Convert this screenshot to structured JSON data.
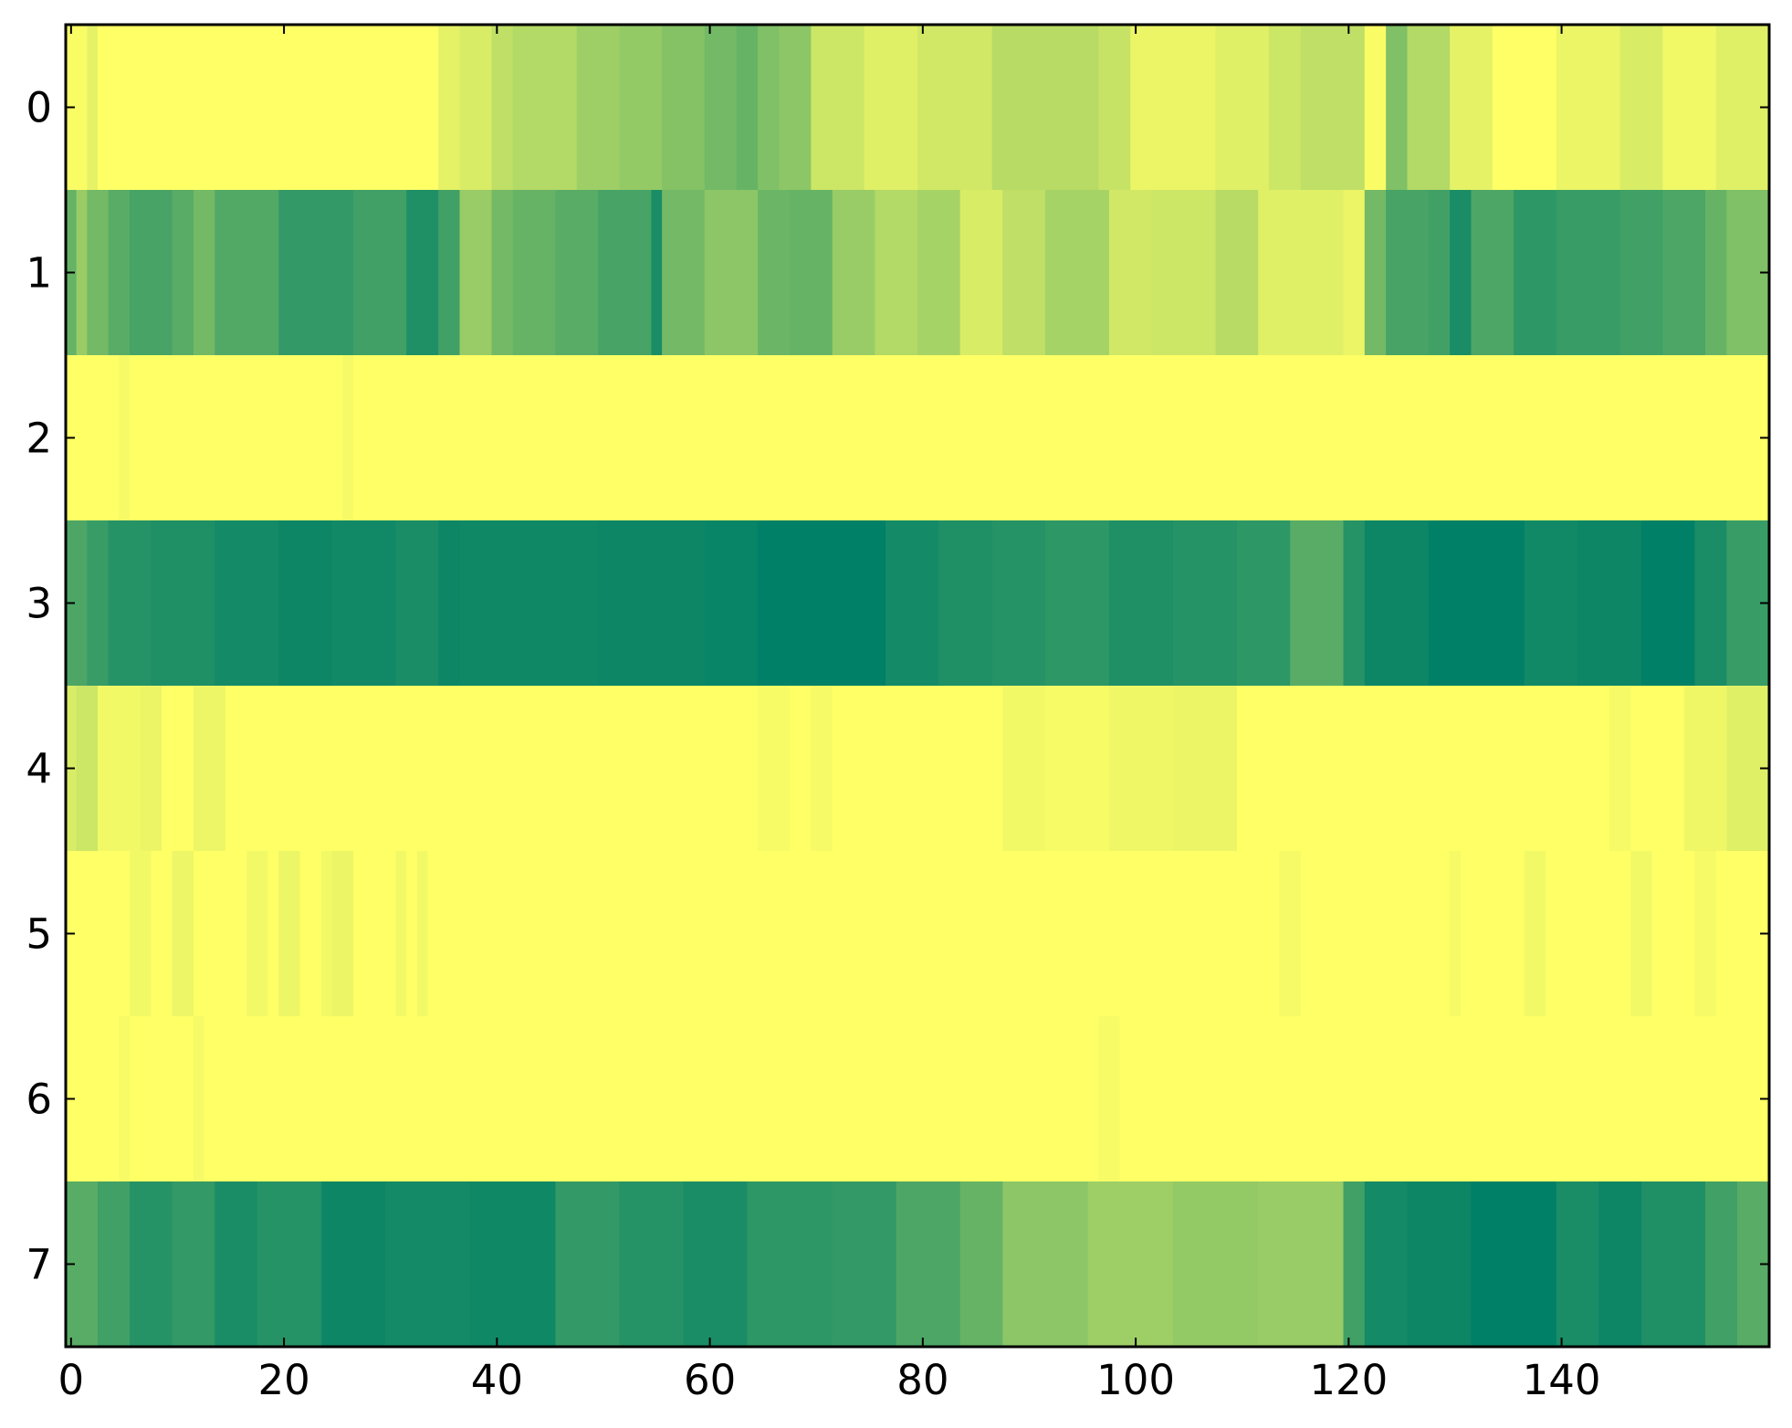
{
  "chart_data": {
    "type": "heatmap",
    "colormap": "summer",
    "color_low": "#008066",
    "color_high": "#ffff66",
    "value_range": [
      0,
      1
    ],
    "x_ticks": [
      0,
      20,
      40,
      60,
      80,
      100,
      120,
      140
    ],
    "x_tick_labels": [
      "0",
      "20",
      "40",
      "60",
      "80",
      "100",
      "120",
      "140"
    ],
    "y_ticks": [
      0,
      1,
      2,
      3,
      4,
      5,
      6,
      7
    ],
    "y_tick_labels": [
      "0",
      "1",
      "2",
      "3",
      "4",
      "5",
      "6",
      "7"
    ],
    "xlim": [
      -0.5,
      159.5
    ],
    "ylim": [
      -0.5,
      7.5
    ],
    "n_columns": 160,
    "rows": [
      {
        "row": 0,
        "segments": [
          [
            0,
            2,
            0.98
          ],
          [
            2,
            3,
            0.9
          ],
          [
            3,
            35,
            1.0
          ],
          [
            35,
            37,
            0.9
          ],
          [
            37,
            40,
            0.85
          ],
          [
            40,
            42,
            0.75
          ],
          [
            42,
            48,
            0.7
          ],
          [
            48,
            52,
            0.62
          ],
          [
            52,
            56,
            0.58
          ],
          [
            56,
            60,
            0.52
          ],
          [
            60,
            63,
            0.45
          ],
          [
            63,
            65,
            0.4
          ],
          [
            65,
            67,
            0.5
          ],
          [
            67,
            70,
            0.55
          ],
          [
            70,
            75,
            0.8
          ],
          [
            75,
            80,
            0.88
          ],
          [
            80,
            87,
            0.82
          ],
          [
            87,
            97,
            0.72
          ],
          [
            97,
            100,
            0.78
          ],
          [
            100,
            108,
            0.92
          ],
          [
            108,
            113,
            0.88
          ],
          [
            113,
            116,
            0.8
          ],
          [
            116,
            122,
            0.75
          ],
          [
            122,
            124,
            0.98
          ],
          [
            124,
            126,
            0.5
          ],
          [
            126,
            130,
            0.7
          ],
          [
            130,
            134,
            0.9
          ],
          [
            134,
            140,
            1.0
          ],
          [
            140,
            146,
            0.92
          ],
          [
            146,
            150,
            0.85
          ],
          [
            150,
            155,
            0.95
          ],
          [
            155,
            160,
            0.88
          ]
        ]
      },
      {
        "row": 1,
        "segments": [
          [
            0,
            1,
            0.4
          ],
          [
            1,
            2,
            0.6
          ],
          [
            2,
            4,
            0.45
          ],
          [
            4,
            6,
            0.35
          ],
          [
            6,
            10,
            0.28
          ],
          [
            10,
            12,
            0.35
          ],
          [
            12,
            14,
            0.45
          ],
          [
            14,
            20,
            0.32
          ],
          [
            20,
            27,
            0.2
          ],
          [
            27,
            32,
            0.25
          ],
          [
            32,
            35,
            0.12
          ],
          [
            35,
            37,
            0.25
          ],
          [
            37,
            40,
            0.6
          ],
          [
            40,
            42,
            0.45
          ],
          [
            42,
            46,
            0.4
          ],
          [
            46,
            50,
            0.35
          ],
          [
            50,
            55,
            0.28
          ],
          [
            55,
            56,
            0.1
          ],
          [
            56,
            60,
            0.45
          ],
          [
            60,
            65,
            0.55
          ],
          [
            65,
            68,
            0.42
          ],
          [
            68,
            72,
            0.4
          ],
          [
            72,
            76,
            0.6
          ],
          [
            76,
            80,
            0.7
          ],
          [
            80,
            84,
            0.65
          ],
          [
            84,
            88,
            0.85
          ],
          [
            88,
            92,
            0.75
          ],
          [
            92,
            98,
            0.65
          ],
          [
            98,
            102,
            0.82
          ],
          [
            102,
            108,
            0.8
          ],
          [
            108,
            112,
            0.72
          ],
          [
            112,
            120,
            0.88
          ],
          [
            120,
            122,
            0.92
          ],
          [
            122,
            124,
            0.45
          ],
          [
            124,
            128,
            0.28
          ],
          [
            128,
            130,
            0.25
          ],
          [
            130,
            132,
            0.1
          ],
          [
            132,
            136,
            0.3
          ],
          [
            136,
            140,
            0.18
          ],
          [
            140,
            146,
            0.22
          ],
          [
            146,
            150,
            0.25
          ],
          [
            150,
            154,
            0.3
          ],
          [
            154,
            156,
            0.4
          ],
          [
            156,
            160,
            0.5
          ]
        ]
      },
      {
        "row": 2,
        "segments": [
          [
            0,
            5,
            1.0
          ],
          [
            5,
            6,
            0.96
          ],
          [
            6,
            26,
            1.0
          ],
          [
            26,
            27,
            0.96
          ],
          [
            27,
            160,
            1.0
          ]
        ]
      },
      {
        "row": 3,
        "segments": [
          [
            0,
            2,
            0.3
          ],
          [
            2,
            4,
            0.22
          ],
          [
            4,
            8,
            0.15
          ],
          [
            8,
            14,
            0.12
          ],
          [
            14,
            20,
            0.08
          ],
          [
            20,
            25,
            0.05
          ],
          [
            25,
            31,
            0.07
          ],
          [
            31,
            35,
            0.1
          ],
          [
            35,
            37,
            0.05
          ],
          [
            37,
            50,
            0.06
          ],
          [
            50,
            60,
            0.05
          ],
          [
            60,
            65,
            0.03
          ],
          [
            65,
            77,
            0.0
          ],
          [
            77,
            82,
            0.08
          ],
          [
            82,
            87,
            0.12
          ],
          [
            87,
            92,
            0.15
          ],
          [
            92,
            98,
            0.18
          ],
          [
            98,
            104,
            0.12
          ],
          [
            104,
            110,
            0.15
          ],
          [
            110,
            115,
            0.18
          ],
          [
            115,
            120,
            0.35
          ],
          [
            120,
            122,
            0.15
          ],
          [
            122,
            128,
            0.05
          ],
          [
            128,
            137,
            0.0
          ],
          [
            137,
            142,
            0.07
          ],
          [
            142,
            148,
            0.05
          ],
          [
            148,
            153,
            0.0
          ],
          [
            153,
            156,
            0.1
          ],
          [
            156,
            160,
            0.22
          ]
        ]
      },
      {
        "row": 4,
        "segments": [
          [
            0,
            1,
            0.85
          ],
          [
            1,
            3,
            0.8
          ],
          [
            3,
            7,
            0.95
          ],
          [
            7,
            9,
            0.92
          ],
          [
            9,
            12,
            1.0
          ],
          [
            12,
            15,
            0.93
          ],
          [
            15,
            65,
            1.0
          ],
          [
            65,
            68,
            0.97
          ],
          [
            68,
            70,
            1.0
          ],
          [
            70,
            72,
            0.96
          ],
          [
            72,
            88,
            1.0
          ],
          [
            88,
            92,
            0.95
          ],
          [
            92,
            98,
            0.97
          ],
          [
            98,
            104,
            0.94
          ],
          [
            104,
            110,
            0.92
          ],
          [
            110,
            145,
            1.0
          ],
          [
            145,
            147,
            0.96
          ],
          [
            147,
            152,
            1.0
          ],
          [
            152,
            156,
            0.94
          ],
          [
            156,
            160,
            0.88
          ]
        ]
      },
      {
        "row": 5,
        "segments": [
          [
            0,
            6,
            1.0
          ],
          [
            6,
            8,
            0.95
          ],
          [
            8,
            10,
            1.0
          ],
          [
            10,
            12,
            0.93
          ],
          [
            12,
            17,
            1.0
          ],
          [
            17,
            19,
            0.95
          ],
          [
            19,
            20,
            1.0
          ],
          [
            20,
            22,
            0.93
          ],
          [
            22,
            24,
            1.0
          ],
          [
            24,
            25,
            0.95
          ],
          [
            25,
            27,
            0.92
          ],
          [
            27,
            31,
            1.0
          ],
          [
            31,
            32,
            0.95
          ],
          [
            32,
            33,
            1.0
          ],
          [
            33,
            34,
            0.95
          ],
          [
            34,
            114,
            1.0
          ],
          [
            114,
            116,
            0.96
          ],
          [
            116,
            130,
            1.0
          ],
          [
            130,
            131,
            0.96
          ],
          [
            131,
            137,
            1.0
          ],
          [
            137,
            139,
            0.95
          ],
          [
            139,
            147,
            1.0
          ],
          [
            147,
            149,
            0.95
          ],
          [
            149,
            153,
            1.0
          ],
          [
            153,
            155,
            0.96
          ],
          [
            155,
            160,
            1.0
          ]
        ]
      },
      {
        "row": 6,
        "segments": [
          [
            0,
            5,
            1.0
          ],
          [
            5,
            6,
            0.97
          ],
          [
            6,
            12,
            1.0
          ],
          [
            12,
            13,
            0.96
          ],
          [
            13,
            97,
            1.0
          ],
          [
            97,
            99,
            0.97
          ],
          [
            99,
            160,
            1.0
          ]
        ]
      },
      {
        "row": 7,
        "segments": [
          [
            0,
            3,
            0.35
          ],
          [
            3,
            6,
            0.25
          ],
          [
            6,
            10,
            0.15
          ],
          [
            10,
            14,
            0.2
          ],
          [
            14,
            18,
            0.1
          ],
          [
            18,
            24,
            0.15
          ],
          [
            24,
            30,
            0.05
          ],
          [
            30,
            38,
            0.08
          ],
          [
            38,
            46,
            0.06
          ],
          [
            46,
            52,
            0.2
          ],
          [
            52,
            58,
            0.15
          ],
          [
            58,
            64,
            0.1
          ],
          [
            64,
            72,
            0.18
          ],
          [
            72,
            78,
            0.2
          ],
          [
            78,
            84,
            0.3
          ],
          [
            84,
            88,
            0.4
          ],
          [
            88,
            96,
            0.55
          ],
          [
            96,
            104,
            0.62
          ],
          [
            104,
            112,
            0.58
          ],
          [
            112,
            120,
            0.6
          ],
          [
            120,
            122,
            0.25
          ],
          [
            122,
            126,
            0.08
          ],
          [
            126,
            132,
            0.05
          ],
          [
            132,
            140,
            0.0
          ],
          [
            140,
            144,
            0.1
          ],
          [
            144,
            148,
            0.05
          ],
          [
            148,
            154,
            0.12
          ],
          [
            154,
            157,
            0.25
          ],
          [
            157,
            160,
            0.35
          ]
        ]
      }
    ]
  }
}
